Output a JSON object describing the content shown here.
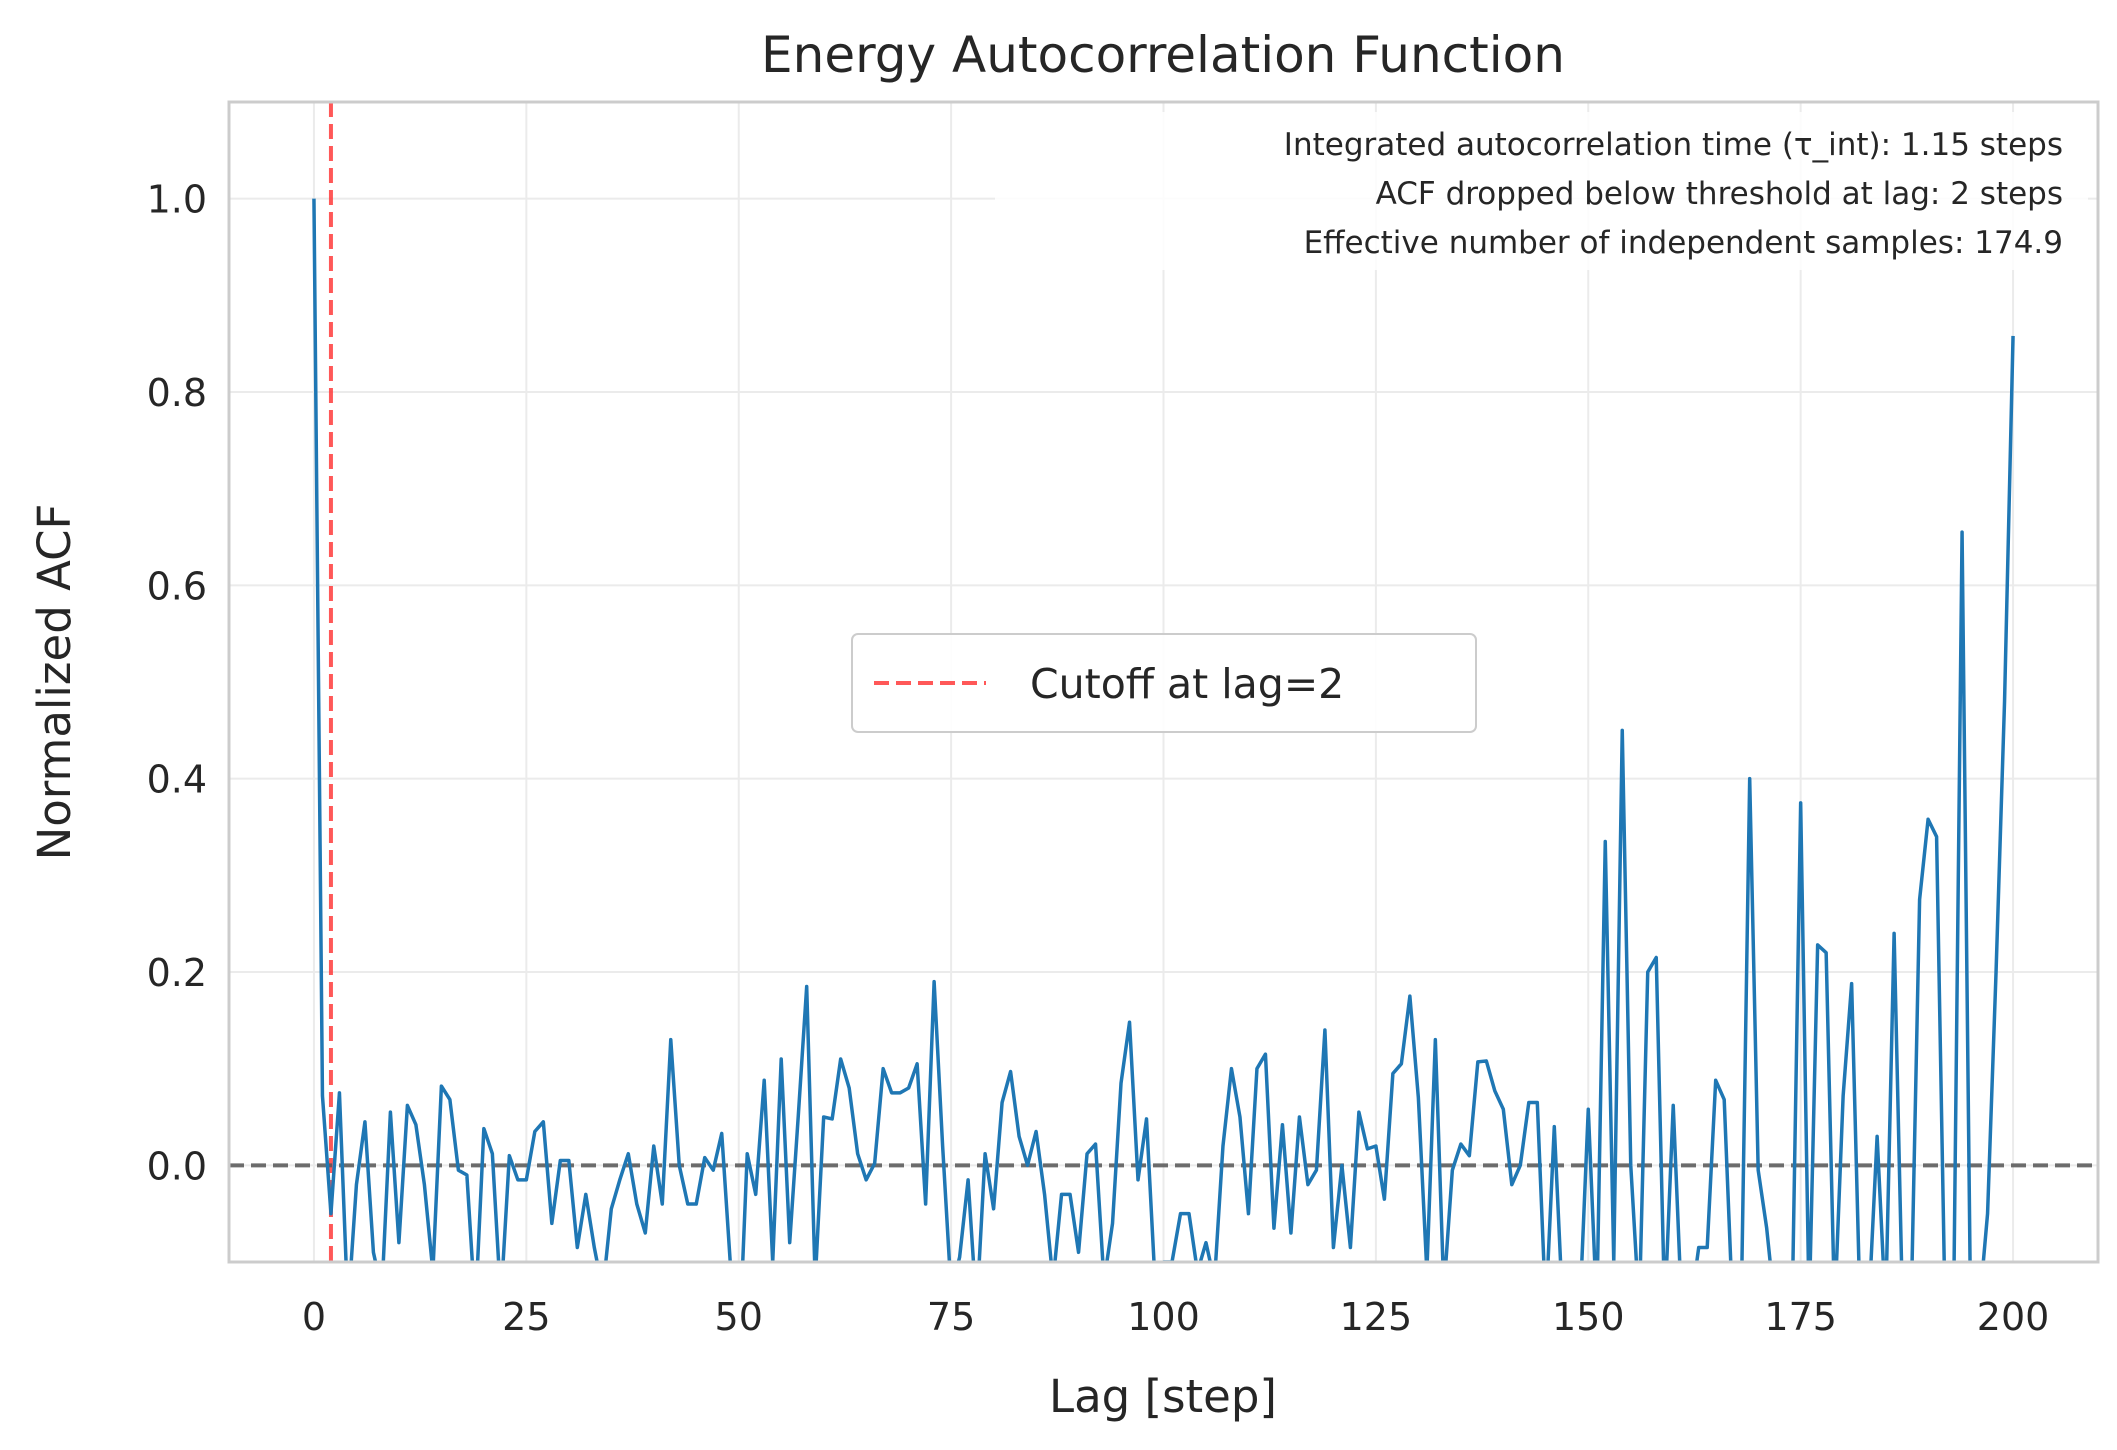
{
  "chart_data": {
    "type": "line",
    "title": "Energy Autocorrelation Function",
    "xlabel": "Lag [step]",
    "ylabel": "Normalized ACF",
    "xlim": [
      -10,
      210
    ],
    "ylim": [
      -0.1,
      1.1
    ],
    "xticks": [
      0,
      25,
      50,
      75,
      100,
      125,
      150,
      175,
      200
    ],
    "yticks": [
      0.0,
      0.2,
      0.4,
      0.6,
      0.8,
      1.0
    ],
    "xtick_labels": [
      "0",
      "25",
      "50",
      "75",
      "100",
      "125",
      "150",
      "175",
      "200"
    ],
    "ytick_labels": [
      "0.0",
      "0.2",
      "0.4",
      "0.6",
      "0.8",
      "1.0"
    ],
    "grid": true,
    "legend_position": "center",
    "series": [
      {
        "color": "#1f77b4",
        "x_start": 0,
        "x_step": 1,
        "values": [
          1.0,
          0.072,
          -0.05,
          0.075,
          -0.15,
          -0.02,
          0.045,
          -0.09,
          -0.13,
          0.055,
          -0.08,
          0.062,
          0.042,
          -0.02,
          -0.11,
          0.082,
          0.068,
          -0.005,
          -0.01,
          -0.15,
          0.038,
          0.012,
          -0.14,
          0.01,
          -0.015,
          -0.015,
          0.035,
          0.045,
          -0.06,
          0.005,
          0.005,
          -0.085,
          -0.03,
          -0.085,
          -0.13,
          -0.045,
          -0.015,
          0.012,
          -0.04,
          -0.07,
          0.02,
          -0.04,
          0.13,
          0.0,
          -0.04,
          -0.04,
          0.008,
          -0.005,
          0.033,
          -0.1,
          -0.2,
          0.012,
          -0.03,
          0.088,
          -0.1,
          0.11,
          -0.08,
          0.05,
          0.185,
          -0.12,
          0.05,
          0.048,
          0.11,
          0.08,
          0.012,
          -0.015,
          0.002,
          0.1,
          0.075,
          0.075,
          0.08,
          0.105,
          -0.04,
          0.19,
          0.02,
          -0.13,
          -0.095,
          -0.015,
          -0.15,
          0.012,
          -0.045,
          0.065,
          0.097,
          0.03,
          0.0,
          0.035,
          -0.03,
          -0.12,
          -0.03,
          -0.03,
          -0.09,
          0.012,
          0.022,
          -0.12,
          -0.06,
          0.085,
          0.148,
          -0.015,
          0.048,
          -0.12,
          -0.1,
          -0.1,
          -0.05,
          -0.05,
          -0.11,
          -0.08,
          -0.12,
          0.02,
          0.1,
          0.05,
          -0.05,
          0.1,
          0.115,
          -0.065,
          0.042,
          -0.07,
          0.05,
          -0.02,
          -0.005,
          0.14,
          -0.085,
          0.0,
          -0.085,
          0.055,
          0.017,
          0.02,
          -0.035,
          0.095,
          0.105,
          0.175,
          0.07,
          -0.11,
          0.13,
          -0.13,
          -0.005,
          0.022,
          0.01,
          0.107,
          0.108,
          0.077,
          0.058,
          -0.02,
          0.0,
          0.065,
          0.065,
          -0.15,
          0.04,
          -0.15,
          -0.15,
          -0.15,
          0.058,
          -0.15,
          0.335,
          -0.1,
          0.45,
          0.0,
          -0.15,
          0.2,
          0.215,
          -0.15,
          0.062,
          -0.15,
          -0.15,
          -0.085,
          -0.085,
          0.088,
          0.068,
          -0.15,
          -0.15,
          0.4,
          -0.005,
          -0.065,
          -0.15,
          -0.15,
          -0.15,
          0.375,
          -0.15,
          0.228,
          0.22,
          -0.15,
          0.072,
          0.188,
          -0.15,
          -0.15,
          0.03,
          -0.15,
          0.24,
          -0.15,
          -0.15,
          0.275,
          0.358,
          0.34,
          -0.15,
          -0.15,
          0.655,
          -0.15,
          -0.15,
          -0.05,
          0.2,
          0.48,
          0.858
        ]
      }
    ],
    "reference_lines": [
      {
        "orientation": "vertical",
        "x": 2,
        "style": "dashed",
        "color": "#ff3b3b",
        "label": "Cutoff at lag=2"
      },
      {
        "orientation": "horizontal",
        "y": 0.0,
        "style": "dashed",
        "color": "#555555"
      }
    ],
    "annotations": [
      "Integrated autocorrelation time (τ_int): 1.15 steps",
      "ACF dropped below threshold at lag: 2 steps",
      "Effective number of independent samples: 174.9"
    ]
  }
}
